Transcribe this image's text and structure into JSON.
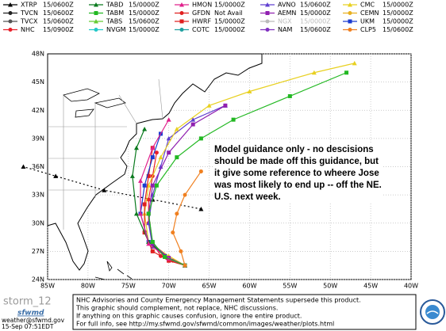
{
  "legend": [
    {
      "name": "XTRP",
      "time": "15/0600Z",
      "color": "#000000",
      "marker": "triangle"
    },
    {
      "name": "TVCN",
      "time": "15/0600Z",
      "color": "#222222",
      "marker": "circle"
    },
    {
      "name": "TVCX",
      "time": "15/0600Z",
      "color": "#555555",
      "marker": "circle"
    },
    {
      "name": "NHC",
      "time": "15/0900Z",
      "color": "#e8202a",
      "marker": "circle"
    },
    {
      "name": "TABD",
      "time": "15/0000Z",
      "color": "#0a7a1e",
      "marker": "triangle"
    },
    {
      "name": "TABM",
      "time": "15/0000Z",
      "color": "#22b822",
      "marker": "square"
    },
    {
      "name": "TABS",
      "time": "15/0600Z",
      "color": "#66cc33",
      "marker": "triangle"
    },
    {
      "name": "NVGM",
      "time": "15/0000Z",
      "color": "#22c8c8",
      "marker": "circle"
    },
    {
      "name": "HMON",
      "time": "15/0000Z",
      "color": "#e0208c",
      "marker": "triangle"
    },
    {
      "name": "GFDN",
      "time": "Not Avail",
      "color": "#e02020",
      "marker": "circle"
    },
    {
      "name": "HWRF",
      "time": "15/0000Z",
      "color": "#e02020",
      "marker": "square"
    },
    {
      "name": "COTC",
      "time": "15/0000Z",
      "color": "#20a0a0",
      "marker": "circle"
    },
    {
      "name": "AVNO",
      "time": "15/0600Z",
      "color": "#6040d0",
      "marker": "triangle"
    },
    {
      "name": "AEMN",
      "time": "15/0000Z",
      "color": "#9020b0",
      "marker": "square"
    },
    {
      "name": "NGX",
      "time": "15/0000Z",
      "color": "#bbbbbb",
      "marker": "circle"
    },
    {
      "name": "NAM",
      "time": "15/0600Z",
      "color": "#8030c0",
      "marker": "circle"
    },
    {
      "name": "CMC",
      "time": "15/0000Z",
      "color": "#e8d020",
      "marker": "triangle"
    },
    {
      "name": "CEMN",
      "time": "15/0000Z",
      "color": "#e8b020",
      "marker": "circle"
    },
    {
      "name": "UKM",
      "time": "15/0000Z",
      "color": "#1a3ad0",
      "marker": "square"
    },
    {
      "name": "CLP5",
      "time": "15/0600Z",
      "color": "#f08020",
      "marker": "circle"
    }
  ],
  "map": {
    "lat_labels": [
      {
        "value": 24,
        "label": "24N"
      },
      {
        "value": 27,
        "label": "27N"
      },
      {
        "value": 30,
        "label": "30N"
      },
      {
        "value": 33,
        "label": "33N"
      },
      {
        "value": 36,
        "label": "36N"
      },
      {
        "value": 39,
        "label": "39N"
      },
      {
        "value": 42,
        "label": "42N"
      },
      {
        "value": 45,
        "label": "45N"
      },
      {
        "value": 48,
        "label": "48N"
      }
    ],
    "lon_labels": [
      {
        "value": -85,
        "label": "85W"
      },
      {
        "value": -80,
        "label": "80W"
      },
      {
        "value": -75,
        "label": "75W"
      },
      {
        "value": -70,
        "label": "70W"
      },
      {
        "value": -65,
        "label": "65W"
      },
      {
        "value": -60,
        "label": "60W"
      },
      {
        "value": -55,
        "label": "55W"
      },
      {
        "value": -50,
        "label": "50W"
      },
      {
        "value": -45,
        "label": "45W"
      },
      {
        "value": -40,
        "label": "40W"
      }
    ],
    "tracks": [
      {
        "legend": 0,
        "lon": [
          -66,
          -72,
          -78,
          -84,
          -88
        ],
        "lat": [
          31.5,
          32.5,
          33.5,
          35,
          36
        ]
      },
      {
        "legend": 3,
        "lon": [
          -68,
          -69.5,
          -71,
          -72,
          -72.5,
          -72.5,
          -72,
          -71.5
        ],
        "lat": [
          25.5,
          26,
          26.5,
          28,
          30,
          32.5,
          35,
          37.5
        ]
      },
      {
        "legend": 12,
        "lon": [
          -68,
          -70,
          -72,
          -72.5,
          -72,
          -71,
          -70,
          -67,
          -63
        ],
        "lat": [
          25.5,
          26.2,
          27.5,
          30,
          33,
          36,
          39,
          41,
          42.5
        ]
      },
      {
        "legend": 16,
        "lon": [
          -68,
          -70,
          -72.5,
          -73,
          -72.5,
          -71,
          -69,
          -65,
          -60,
          -52,
          -47
        ],
        "lat": [
          25.5,
          26.5,
          28,
          31,
          34,
          37,
          40,
          42.5,
          44,
          46,
          47
        ]
      },
      {
        "legend": 10,
        "lon": [
          -68,
          -70,
          -72,
          -73,
          -73,
          -72.5,
          -72
        ],
        "lat": [
          25.5,
          26,
          27,
          29,
          32,
          35,
          38
        ]
      },
      {
        "legend": 18,
        "lon": [
          -68,
          -70.5,
          -72.5,
          -73.5,
          -73,
          -72,
          -71
        ],
        "lat": [
          25.5,
          26.5,
          28,
          31,
          34,
          37,
          39.5
        ]
      },
      {
        "legend": 4,
        "lon": [
          -68,
          -70,
          -72.5,
          -74,
          -74.5,
          -74,
          -73
        ],
        "lat": [
          25.5,
          26.3,
          28,
          31,
          35,
          38,
          40
        ]
      },
      {
        "legend": 13,
        "lon": [
          -68,
          -70,
          -72,
          -72.5,
          -72,
          -70,
          -67,
          -63
        ],
        "lat": [
          25.5,
          26.3,
          27.8,
          31,
          34,
          37.5,
          40.5,
          42.5
        ]
      },
      {
        "legend": 8,
        "lon": [
          -68,
          -70,
          -72.5,
          -73.5,
          -73.5,
          -72,
          -70
        ],
        "lat": [
          25.5,
          26.2,
          27.8,
          31,
          34.5,
          38,
          41
        ]
      },
      {
        "legend": 5,
        "lon": [
          -68,
          -70.5,
          -72,
          -72.5,
          -71.5,
          -69,
          -66,
          -62,
          -55,
          -48
        ],
        "lat": [
          25.5,
          26.4,
          28,
          31,
          34,
          37,
          39,
          41,
          43.5,
          46
        ]
      },
      {
        "legend": 19,
        "lon": [
          -68,
          -68.5,
          -69.5,
          -69,
          -68,
          -66
        ],
        "lat": [
          25.5,
          27,
          29,
          31,
          33,
          35.5
        ]
      }
    ]
  },
  "annotation": "Model guidance only - no descisions should be made off this guidance, but it give some reference to wheere Jose was most likely to end up -- off the NE. U.S. next week.",
  "footer": {
    "storm": "storm_12",
    "site": "sfwmd",
    "email": "weather@sfwmd.gov",
    "date": "15-Sep 07:51EDT",
    "notice": [
      "NHC Advisories and County Emergency Management Statements supersede this product.",
      "This graphic should complement, not replace, NHC discussions.",
      "If anything on this graphic causes confusion, ignore the entire product.",
      "For full info, see   http://my.sfwmd.gov/sfwmd/common/images/weather/plots.html"
    ]
  }
}
